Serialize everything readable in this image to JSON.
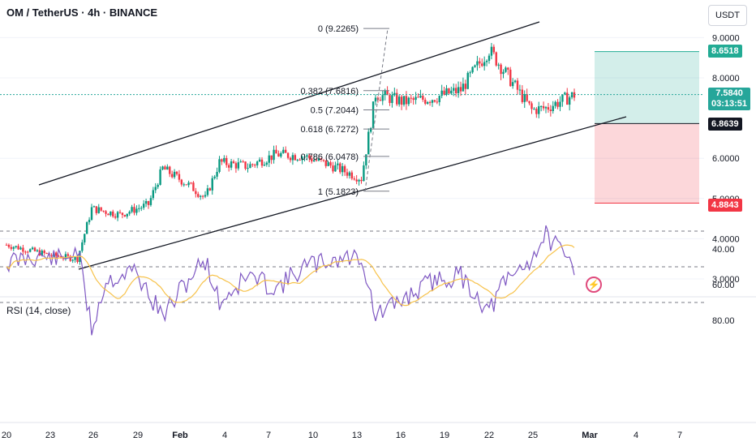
{
  "header": {
    "title": "OM / TetherUS · 4h · BINANCE",
    "currency_button": "USDT"
  },
  "rsi_panel": {
    "label": "RSI (14, close)",
    "axis_ticks": [
      "80.00",
      "60.00",
      "40.00"
    ],
    "levels": [
      70,
      50,
      30
    ],
    "band_color": "#7e57c2",
    "line_color": "#7e57c2",
    "ma_color": "#f7c24a"
  },
  "price_axis": {
    "ticks": [
      "9.0000",
      "8.0000",
      "6.0000",
      "5.0000",
      "4.0000",
      "3.0000"
    ]
  },
  "price_tags": {
    "target": "8.6518",
    "current_price": "7.5840",
    "countdown": "03:13:51",
    "entry": "6.8639",
    "stop": "4.8843"
  },
  "fib_levels": [
    {
      "label": "0 (9.2265)",
      "value": 9.2265
    },
    {
      "label": "0.382 (7.6816)",
      "value": 7.6816
    },
    {
      "label": "0.5 (7.2044)",
      "value": 7.2044
    },
    {
      "label": "0.618 (6.7272)",
      "value": 6.7272
    },
    {
      "label": "0.786 (6.0478)",
      "value": 6.0478
    },
    {
      "label": "1 (5.1823)",
      "value": 5.1823
    }
  ],
  "x_axis": {
    "labels": [
      "20",
      "23",
      "26",
      "29",
      "Feb",
      "4",
      "7",
      "10",
      "13",
      "16",
      "19",
      "22",
      "25",
      "Mar",
      "4",
      "7"
    ]
  },
  "colors": {
    "up": "#089981",
    "down": "#f23645",
    "profit_zone": "#22ab94",
    "loss_zone": "#f23645",
    "channel": "#131722",
    "current_price_line": "#26a69a"
  },
  "chart_data": {
    "type": "candlestick",
    "symbol": "OM / TetherUS",
    "interval": "4h",
    "exchange": "BINANCE",
    "ylim": [
      2.6,
      9.9
    ],
    "y_ticks": [
      3.0,
      4.0,
      5.0,
      6.0,
      8.0,
      9.0
    ],
    "x_tick_labels": [
      "20",
      "23",
      "26",
      "29",
      "Feb",
      "4",
      "7",
      "10",
      "13",
      "16",
      "19",
      "22",
      "25",
      "Mar",
      "4",
      "7"
    ],
    "trend_points": [
      {
        "date": "Jan 20",
        "close": 3.85
      },
      {
        "date": "Jan 23",
        "close": 3.6
      },
      {
        "date": "Jan 25",
        "close": 3.5
      },
      {
        "date": "Jan 26",
        "close": 4.75
      },
      {
        "date": "Jan 28",
        "close": 4.6
      },
      {
        "date": "Jan 30",
        "close": 4.85
      },
      {
        "date": "Jan 31",
        "close": 5.75
      },
      {
        "date": "Feb 2",
        "close": 5.3
      },
      {
        "date": "Feb 3",
        "close": 5.0
      },
      {
        "date": "Feb 4",
        "close": 5.9
      },
      {
        "date": "Feb 6",
        "close": 5.8
      },
      {
        "date": "Feb 8",
        "close": 6.1
      },
      {
        "date": "Feb 10",
        "close": 6.05
      },
      {
        "date": "Feb 12",
        "close": 5.8
      },
      {
        "date": "Feb 14",
        "close": 5.5
      },
      {
        "date": "Feb 15",
        "close": 7.6
      },
      {
        "date": "Feb 17",
        "close": 7.4
      },
      {
        "date": "Feb 19",
        "close": 7.5
      },
      {
        "date": "Feb 21",
        "close": 7.7
      },
      {
        "date": "Feb 23",
        "close": 8.7
      },
      {
        "date": "Feb 24",
        "close": 8.2
      },
      {
        "date": "Feb 26",
        "close": 7.2
      },
      {
        "date": "Feb 27",
        "close": 7.25
      },
      {
        "date": "Mar 1",
        "close": 7.58
      }
    ],
    "rsi": {
      "name": "RSI (14, close)",
      "ylim": [
        25,
        90
      ],
      "points": [
        {
          "date": "Jan 20",
          "value": 48
        },
        {
          "date": "Jan 22",
          "value": 44
        },
        {
          "date": "Jan 24",
          "value": 46
        },
        {
          "date": "Jan 25",
          "value": 40
        },
        {
          "date": "Jan 26",
          "value": 85
        },
        {
          "date": "Jan 27",
          "value": 58
        },
        {
          "date": "Jan 29",
          "value": 52
        },
        {
          "date": "Jan 31",
          "value": 78
        },
        {
          "date": "Feb 2",
          "value": 55
        },
        {
          "date": "Feb 3",
          "value": 46
        },
        {
          "date": "Feb 4",
          "value": 70
        },
        {
          "date": "Feb 6",
          "value": 55
        },
        {
          "date": "Feb 8",
          "value": 62
        },
        {
          "date": "Feb 10",
          "value": 50
        },
        {
          "date": "Feb 12",
          "value": 46
        },
        {
          "date": "Feb 14",
          "value": 44
        },
        {
          "date": "Feb 15",
          "value": 78
        },
        {
          "date": "Feb 17",
          "value": 68
        },
        {
          "date": "Feb 19",
          "value": 58
        },
        {
          "date": "Feb 21",
          "value": 55
        },
        {
          "date": "Feb 23",
          "value": 75
        },
        {
          "date": "Feb 24",
          "value": 60
        },
        {
          "date": "Feb 26",
          "value": 45
        },
        {
          "date": "Feb 27",
          "value": 32
        },
        {
          "date": "Feb 28",
          "value": 42
        },
        {
          "date": "Mar 1",
          "value": 50
        }
      ]
    },
    "annotations": [
      "channel-upper",
      "channel-lower",
      "fib-retracement",
      "long-position"
    ]
  }
}
